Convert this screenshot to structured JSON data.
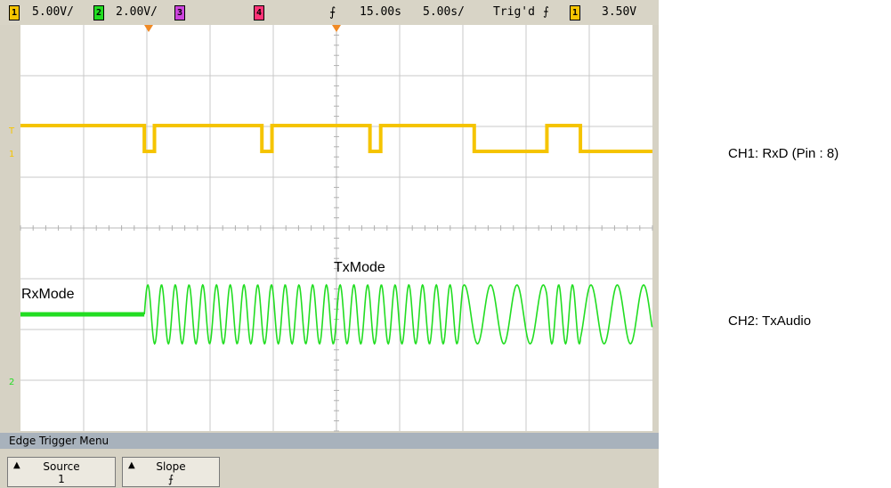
{
  "topbar": {
    "ch1": {
      "num": "1",
      "scale": "5.00V/",
      "color": "#f5c400"
    },
    "ch2": {
      "num": "2",
      "scale": "2.00V/",
      "color": "#22dd22"
    },
    "ch3": {
      "num": "3",
      "color": "#cc44dd"
    },
    "ch4": {
      "num": "4",
      "color": "#ff3377"
    },
    "time_delay": "15.00ѕ",
    "time_scale": "5.00ѕ/",
    "trig_status": "Trig'd",
    "trig_slope": "⨍",
    "trig_source": "1",
    "trig_level": "3.50V"
  },
  "menu": {
    "title": "Edge Trigger Menu",
    "softkeys": [
      {
        "label": "Source",
        "value": "1"
      },
      {
        "label": "Slope",
        "value": "⨍"
      }
    ]
  },
  "screen_labels": {
    "rxmode": "RxMode",
    "txmode": "TxMode"
  },
  "annotations": {
    "ch1": "CH1: RxD (Pin : 8)",
    "ch2": "CH2: TxAudio"
  },
  "markers": {
    "ch1_marker": "1",
    "ch2_marker": "2",
    "trig_marker": "T"
  },
  "colors": {
    "ch1": "#f5c400",
    "ch2": "#22dd22",
    "grid_bg": "#ffffff",
    "grid_line": "#c8c8c8",
    "menu_title_bg": "#a8b2bc"
  },
  "waveforms": {
    "ch1_digital": {
      "high_level": "high",
      "low_level": "low",
      "segments": [
        {
          "t_start": 0.0,
          "t_end": 0.196,
          "state": "high"
        },
        {
          "t_start": 0.196,
          "t_end": 0.212,
          "state": "low"
        },
        {
          "t_start": 0.212,
          "t_end": 0.382,
          "state": "high"
        },
        {
          "t_start": 0.382,
          "t_end": 0.398,
          "state": "low"
        },
        {
          "t_start": 0.398,
          "t_end": 0.553,
          "state": "high"
        },
        {
          "t_start": 0.553,
          "t_end": 0.57,
          "state": "low"
        },
        {
          "t_start": 0.57,
          "t_end": 0.718,
          "state": "high"
        },
        {
          "t_start": 0.718,
          "t_end": 0.833,
          "state": "low"
        },
        {
          "t_start": 0.833,
          "t_end": 0.886,
          "state": "high"
        },
        {
          "t_start": 0.886,
          "t_end": 1.0,
          "state": "low"
        }
      ]
    },
    "ch2_audio": {
      "idle_until": 0.196,
      "high_freq_cycles_per_div": 4.6,
      "low_freq_cycles_per_div": 2.4,
      "segments": [
        {
          "t_start": 0.196,
          "t_end": 0.7,
          "tone": "high"
        },
        {
          "t_start": 0.7,
          "t_end": 0.833,
          "tone": "low"
        },
        {
          "t_start": 0.833,
          "t_end": 0.886,
          "tone": "high"
        },
        {
          "t_start": 0.886,
          "t_end": 1.0,
          "tone": "low"
        }
      ]
    }
  }
}
